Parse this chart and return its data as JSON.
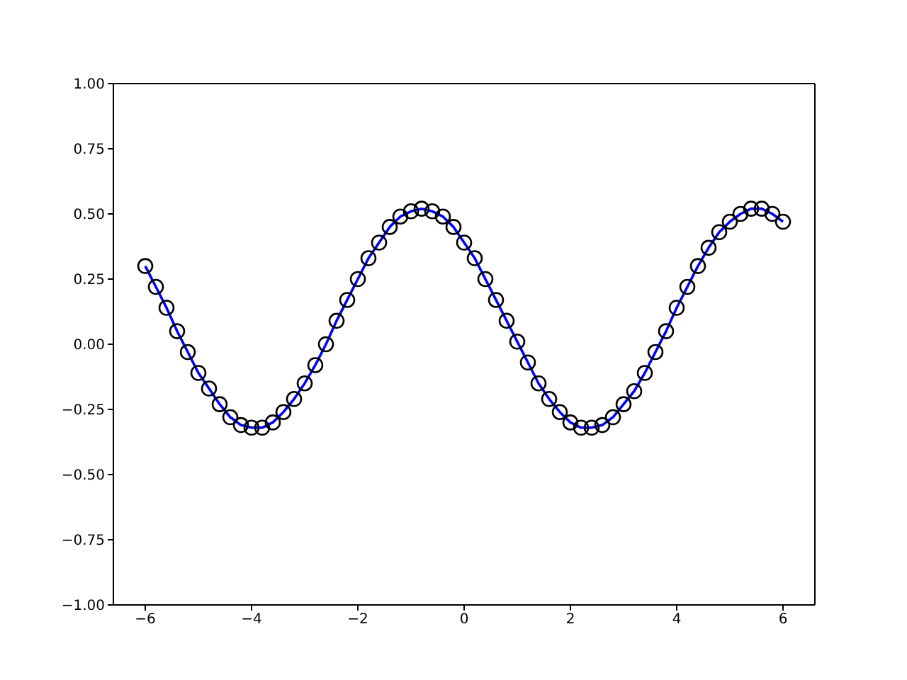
{
  "chart_data": {
    "type": "scatter",
    "x": [
      -6,
      -5.8,
      -5.6,
      -5.4,
      -5.2,
      -5,
      -4.8,
      -4.6,
      -4.4,
      -4.2,
      -4,
      -3.8,
      -3.6,
      -3.4,
      -3.2,
      -3,
      -2.8,
      -2.6,
      -2.4,
      -2.2,
      -2,
      -1.8,
      -1.6,
      -1.4,
      -1.2,
      -1,
      -0.8,
      -0.6,
      -0.4,
      -0.2,
      0,
      0.2,
      0.4,
      0.6,
      0.8,
      1,
      1.2,
      1.4,
      1.6,
      1.8,
      2,
      2.2,
      2.4,
      2.6,
      2.8,
      3,
      3.2,
      3.4,
      3.6,
      3.8,
      4,
      4.2,
      4.4,
      4.6,
      4.8,
      5,
      5.2,
      5.4,
      5.6,
      5.8,
      6
    ],
    "series": [
      {
        "color": "#000000",
        "marker": "circle",
        "values": [
          0.3,
          0.22,
          0.14,
          0.05,
          -0.03,
          -0.11,
          -0.17,
          -0.23,
          -0.28,
          -0.31,
          -0.32,
          -0.32,
          -0.3,
          -0.26,
          -0.21,
          -0.15,
          -0.08,
          0.0,
          0.09,
          0.17,
          0.25,
          0.33,
          0.39,
          0.45,
          0.49,
          0.51,
          0.52,
          0.51,
          0.49,
          0.45,
          0.39,
          0.33,
          0.25,
          0.17,
          0.09,
          0.01,
          -0.07,
          -0.15,
          -0.21,
          -0.26,
          -0.3,
          -0.32,
          -0.32,
          -0.31,
          -0.28,
          -0.23,
          -0.18,
          -0.11,
          -0.03,
          0.05,
          0.14,
          0.22,
          0.3,
          0.37,
          0.43,
          0.47,
          0.5,
          0.52,
          0.52,
          0.5,
          0.47
        ]
      },
      {
        "type": "line",
        "color": "#0000ff",
        "marker": "none",
        "line_style": "solid",
        "values": [
          0.3,
          0.22,
          0.14,
          0.05,
          -0.03,
          -0.11,
          -0.17,
          -0.23,
          -0.28,
          -0.31,
          -0.32,
          -0.32,
          -0.3,
          -0.26,
          -0.21,
          -0.15,
          -0.08,
          0.0,
          0.09,
          0.17,
          0.25,
          0.33,
          0.39,
          0.45,
          0.49,
          0.51,
          0.52,
          0.51,
          0.49,
          0.45,
          0.39,
          0.33,
          0.25,
          0.17,
          0.09,
          0.01,
          -0.07,
          -0.15,
          -0.21,
          -0.26,
          -0.3,
          -0.32,
          -0.32,
          -0.31,
          -0.28,
          -0.23,
          -0.18,
          -0.11,
          -0.03,
          0.05,
          0.14,
          0.22,
          0.3,
          0.37,
          0.43,
          0.47,
          0.5,
          0.52,
          0.52,
          0.5,
          0.47
        ]
      }
    ],
    "xlim": [
      -6.6,
      6.6
    ],
    "xticks": [
      {
        "value": -6,
        "label": "−6"
      },
      {
        "value": -4,
        "label": "−4"
      },
      {
        "value": -2,
        "label": "−2"
      },
      0,
      2,
      4,
      6
    ],
    "ylim": [
      -1,
      1
    ],
    "yticks": [
      {
        "value": -1,
        "label": "−1.00"
      },
      {
        "value": -0.75,
        "label": "−0.75"
      },
      {
        "value": -0.5,
        "label": "−0.50"
      },
      {
        "value": -0.25,
        "label": "−0.25"
      },
      {
        "value": 0,
        "label": "0.00"
      },
      {
        "value": 0.25,
        "label": "0.25"
      },
      {
        "value": 0.5,
        "label": "0.50"
      },
      {
        "value": 0.75,
        "label": "0.75"
      },
      {
        "value": 1,
        "label": "1.00"
      }
    ],
    "grid": false,
    "legend": false
  }
}
